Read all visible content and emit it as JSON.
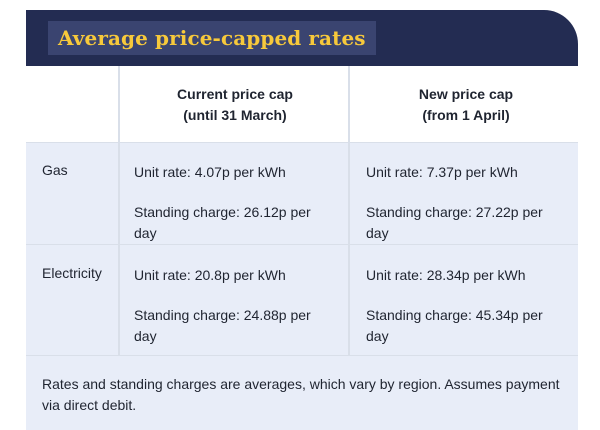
{
  "title": "Average price-capped rates",
  "columns": [
    {
      "line1": "Current price cap",
      "line2": "(until 31 March)"
    },
    {
      "line1": "New price cap",
      "line2": "(from 1 April)"
    }
  ],
  "rows": [
    {
      "label": "Gas",
      "cells": [
        {
          "unit_rate": "Unit rate: 4.07p per kWh",
          "standing": "Standing charge: 26.12p per day"
        },
        {
          "unit_rate": "Unit rate: 7.37p per kWh",
          "standing": "Standing charge: 27.22p per day"
        }
      ]
    },
    {
      "label": "Electricity",
      "cells": [
        {
          "unit_rate": "Unit rate: 20.8p per kWh",
          "standing": "Standing charge: 24.88p per day"
        },
        {
          "unit_rate": "Unit rate: 28.34p per kWh",
          "standing": "Standing charge: 45.34p per day"
        }
      ]
    }
  ],
  "footnote": "Rates and standing charges are averages, which vary by region. Assumes payment via direct debit."
}
